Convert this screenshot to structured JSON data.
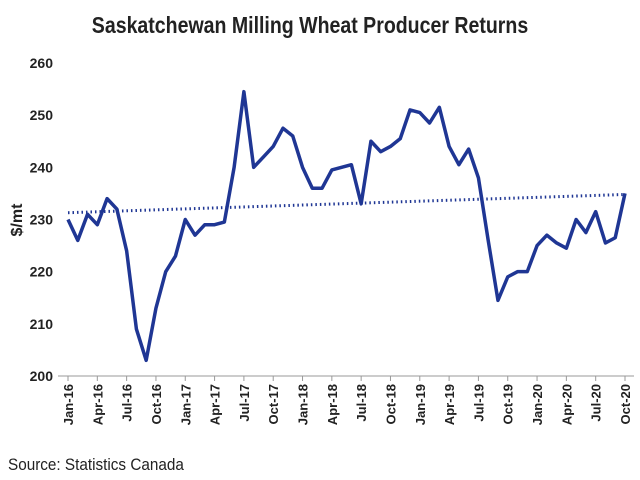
{
  "chart_data": {
    "type": "line",
    "title": "Saskatchewan Milling Wheat Producer Returns",
    "y_label": "$/mt",
    "source": "Source: Statistics Canada",
    "categories": [
      "Jan-16",
      null,
      null,
      "Apr-16",
      null,
      null,
      "Jul-16",
      null,
      null,
      "Oct-16",
      null,
      null,
      "Jan-17",
      null,
      null,
      "Apr-17",
      null,
      null,
      "Jul-17",
      null,
      null,
      "Oct-17",
      null,
      null,
      "Jan-18",
      null,
      null,
      "Apr-18",
      null,
      null,
      "Jul-18",
      null,
      null,
      "Oct-18",
      null,
      null,
      "Jan-19",
      null,
      null,
      "Apr-19",
      null,
      null,
      "Jul-19",
      null,
      null,
      "Oct-19",
      null,
      null,
      "Jan-20",
      null,
      null,
      "Apr-20",
      null,
      null,
      "Jul-20",
      null,
      null,
      "Oct-20"
    ],
    "values": [
      230,
      226,
      231,
      229,
      234,
      232,
      224,
      209,
      203,
      213,
      220,
      223,
      230,
      227,
      229,
      229,
      229.5,
      240,
      254.5,
      240,
      242,
      244,
      247.5,
      246,
      240,
      236,
      236,
      239.5,
      240,
      240.5,
      233,
      245,
      243,
      244,
      245.5,
      251,
      250.5,
      248.5,
      251.5,
      244,
      240.5,
      243.5,
      238,
      226,
      214.5,
      219,
      220,
      220,
      225,
      227,
      225.5,
      224.5,
      230,
      227.5,
      231.5,
      225.5,
      226.5,
      235
    ],
    "color": "#1f3694",
    "trend": {
      "start": 231.3,
      "end": 234.8,
      "color": "#1f3694"
    },
    "ylim": [
      200,
      260
    ],
    "yticks": [
      200,
      210,
      220,
      230,
      240,
      250,
      260
    ],
    "grid": false
  }
}
